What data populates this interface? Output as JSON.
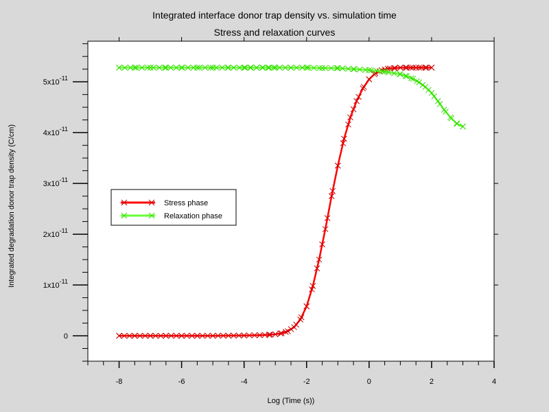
{
  "chart_data": {
    "type": "line",
    "title": "Integrated interface donor trap density vs. simulation time",
    "subtitle": "Stress and relaxation curves",
    "xlabel": "Log (Time (s))",
    "ylabel": "Integrated degradation donor trap density (C/cm)",
    "xlim": [
      -9,
      4
    ],
    "ylim": [
      -5e-12,
      5.8e-11
    ],
    "x_ticks": [
      -8,
      -6,
      -4,
      -2,
      0,
      2,
      4
    ],
    "x_tick_labels": [
      "-8",
      "-6",
      "-4",
      "-2",
      "0",
      "2",
      "4"
    ],
    "y_ticks": [
      0,
      1e-11,
      2e-11,
      3e-11,
      4e-11,
      5e-11
    ],
    "y_tick_labels": [
      {
        "mant": "0",
        "exp": ""
      },
      {
        "mant": "1x10",
        "exp": "-11"
      },
      {
        "mant": "2x10",
        "exp": "-11"
      },
      {
        "mant": "3x10",
        "exp": "-11"
      },
      {
        "mant": "4x10",
        "exp": "-11"
      },
      {
        "mant": "5x10",
        "exp": "-11"
      }
    ],
    "grid": false,
    "legend_position": "center-left",
    "series": [
      {
        "name": "Stress phase",
        "color": "#ff0000",
        "marker_color": "#cc0000",
        "x": [
          -8,
          -7.5,
          -7,
          -6.5,
          -6,
          -5.5,
          -5,
          -4.5,
          -4,
          -3.5,
          -3.2,
          -3,
          -2.8,
          -2.6,
          -2.4,
          -2.2,
          -2,
          -1.8,
          -1.6,
          -1.4,
          -1.2,
          -1,
          -0.8,
          -0.6,
          -0.4,
          -0.2,
          0,
          0.2,
          0.4,
          0.6,
          0.8,
          1,
          1.2,
          1.4,
          1.6,
          1.8,
          2
        ],
        "y": [
          0,
          0,
          0,
          0,
          0,
          0,
          1e-14,
          3e-14,
          6e-14,
          1.2e-13,
          2e-13,
          3e-13,
          5e-13,
          9e-13,
          1.7e-12,
          3.2e-12,
          5.8e-12,
          9.8e-12,
          1.5e-11,
          2.1e-11,
          2.75e-11,
          3.35e-11,
          3.88e-11,
          4.3e-11,
          4.62e-11,
          4.87e-11,
          5.05e-11,
          5.17e-11,
          5.23e-11,
          5.26e-11,
          5.27e-11,
          5.28e-11,
          5.28e-11,
          5.28e-11,
          5.28e-11,
          5.28e-11,
          5.28e-11
        ]
      },
      {
        "name": "Relaxation phase",
        "color": "#66ff33",
        "marker_color": "#33dd00",
        "x": [
          -8,
          -7.5,
          -7,
          -6.5,
          -6,
          -5.5,
          -5,
          -4.5,
          -4,
          -3.8,
          -3.6,
          -3.4,
          -3.2,
          -3,
          -2.5,
          -2,
          -1.5,
          -1,
          -0.5,
          0,
          0.5,
          1,
          1.2,
          1.4,
          1.6,
          1.8,
          2,
          2.2,
          2.4,
          2.6,
          2.8,
          3
        ],
        "y": [
          5.28e-11,
          5.28e-11,
          5.28e-11,
          5.28e-11,
          5.28e-11,
          5.28e-11,
          5.28e-11,
          5.28e-11,
          5.28e-11,
          5.28e-11,
          5.28e-11,
          5.28e-11,
          5.28e-11,
          5.28e-11,
          5.28e-11,
          5.28e-11,
          5.27e-11,
          5.27e-11,
          5.25e-11,
          5.23e-11,
          5.2e-11,
          5.15e-11,
          5.11e-11,
          5.06e-11,
          4.99e-11,
          4.9e-11,
          4.78e-11,
          4.62e-11,
          4.45e-11,
          4.3e-11,
          4.18e-11,
          4.12e-11
        ]
      }
    ]
  }
}
